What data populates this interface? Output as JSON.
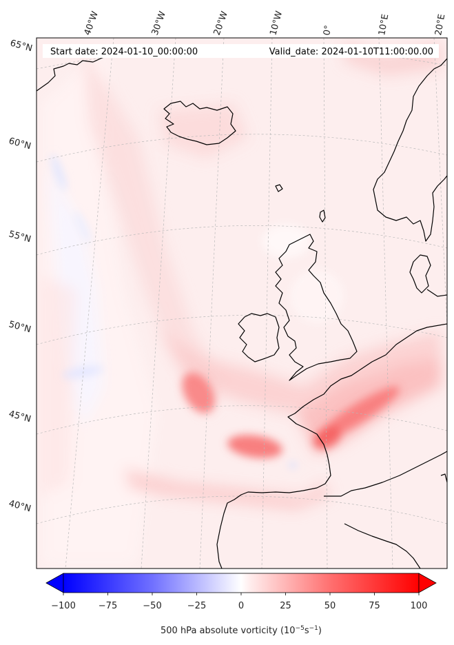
{
  "header": {
    "start_date": "Start date: 2024-01-10_00:00:00",
    "valid_date": "Valid_date: 2024-01-10T11:00:00.00"
  },
  "map": {
    "longitude_labels": [
      "40°W",
      "30°W",
      "20°W",
      "10°W",
      "0°",
      "10°E",
      "20°E"
    ],
    "latitude_labels": [
      "65°N",
      "60°N",
      "55°N",
      "50°N",
      "45°N",
      "40°N"
    ]
  },
  "colorbar": {
    "ticks": [
      "−100",
      "−75",
      "−50",
      "−25",
      "0",
      "25",
      "50",
      "75",
      "100"
    ],
    "label_main": "500 hPa absolute vorticity (10",
    "label_sup1": "−5",
    "label_mid": "s",
    "label_sup2": "−1",
    "label_end": ")",
    "min": -100,
    "max": 100,
    "colors": {
      "negative": "#0000ff",
      "neutral": "#ffffff",
      "positive": "#ff0000"
    }
  }
}
